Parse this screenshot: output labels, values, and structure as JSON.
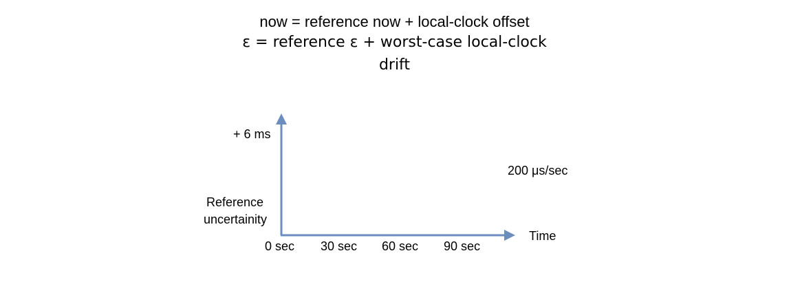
{
  "formula": {
    "line1": "now = reference now + local-clock offset",
    "line2": "ε  = reference ε + worst-case local-clock",
    "line3": "drift"
  },
  "diagram": {
    "y_top_label": "+ 6 ms",
    "y_bottom_label_line1": "Reference",
    "y_bottom_label_line2": "uncertainity",
    "x_axis_label": "Time",
    "rate_label": "200 μs/sec",
    "x_ticks": [
      "0 sec",
      "30 sec",
      "60 sec",
      "90 sec"
    ],
    "axis_color": "#6c8ebf"
  }
}
